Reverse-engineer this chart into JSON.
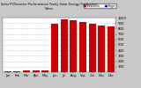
{
  "title": "Solar PV/Inverter Performance Yearly Solar Energy Production Value",
  "categories": [
    "Jan",
    "Feb",
    "Mar",
    "Apr",
    "May",
    "Jun",
    "Jul",
    "Aug",
    "Sep",
    "Oct",
    "Nov",
    "Dec"
  ],
  "values_current": [
    15,
    20,
    25,
    30,
    35,
    880,
    970,
    950,
    920,
    890,
    860,
    840
  ],
  "bar_color": "#cc0000",
  "bar_color2": "#0000ff",
  "bg_color": "#c8c8c8",
  "plot_bg": "#ffffff",
  "grid_color": "#888888",
  "ylim": [
    0,
    1000
  ],
  "yticks": [
    100,
    200,
    300,
    400,
    500,
    600,
    700,
    800,
    900,
    1000
  ],
  "legend_label1": "Production",
  "legend_label2": "Target",
  "title_fontsize": 3.5,
  "bar_width": 0.75
}
